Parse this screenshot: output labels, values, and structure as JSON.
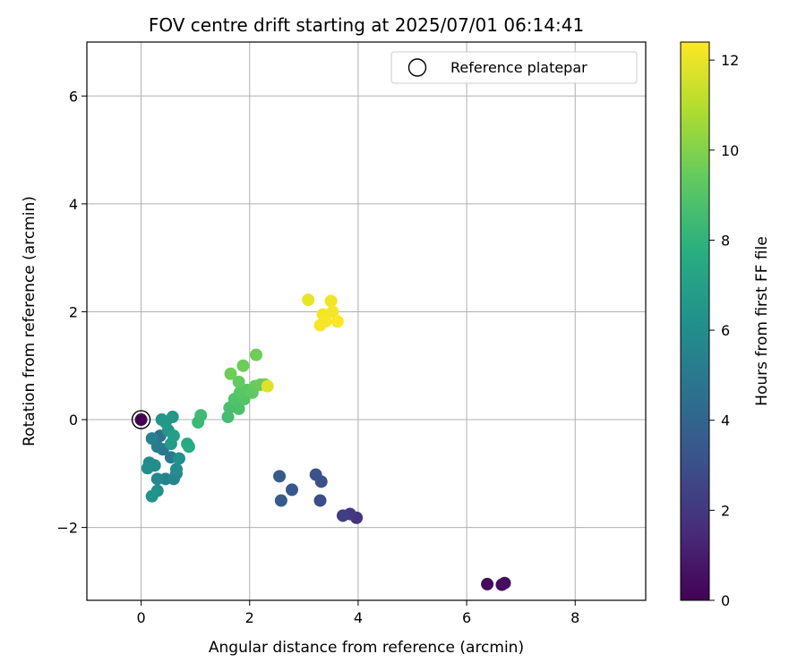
{
  "chart_data": {
    "type": "scatter",
    "title": "FOV centre drift starting at 2025/07/01 06:14:41",
    "xlabel": "Angular distance from reference (arcmin)",
    "ylabel": "Rotation from reference (arcmin)",
    "xlim": [
      -1.0,
      9.3
    ],
    "ylim": [
      -3.35,
      7.0
    ],
    "xticks": [
      0,
      2,
      4,
      6,
      8
    ],
    "yticks": [
      -2,
      0,
      2,
      4,
      6
    ],
    "grid": true,
    "legend": {
      "position": "top-right",
      "entries": [
        "Reference platepar"
      ]
    },
    "reference_point": {
      "x": 0,
      "y": 0,
      "label": "Reference platepar"
    },
    "colorbar": {
      "label": "Hours from first FF file",
      "min": 0,
      "max": 12.4,
      "ticks": [
        0,
        2,
        4,
        6,
        8,
        10,
        12
      ],
      "colormap": "viridis"
    },
    "points": [
      {
        "x": 0.0,
        "y": 0.0,
        "h": 0.0
      },
      {
        "x": 6.38,
        "y": -3.05,
        "h": 0.3
      },
      {
        "x": 6.65,
        "y": -3.06,
        "h": 0.4
      },
      {
        "x": 6.7,
        "y": -3.03,
        "h": 0.5
      },
      {
        "x": 3.97,
        "y": -1.82,
        "h": 1.8
      },
      {
        "x": 3.85,
        "y": -1.75,
        "h": 2.1
      },
      {
        "x": 3.72,
        "y": -1.78,
        "h": 2.3
      },
      {
        "x": 3.3,
        "y": -1.5,
        "h": 2.9
      },
      {
        "x": 3.32,
        "y": -1.15,
        "h": 3.0
      },
      {
        "x": 3.22,
        "y": -1.02,
        "h": 3.1
      },
      {
        "x": 2.78,
        "y": -1.3,
        "h": 3.4
      },
      {
        "x": 2.58,
        "y": -1.5,
        "h": 3.5
      },
      {
        "x": 2.55,
        "y": -1.05,
        "h": 3.6
      },
      {
        "x": 0.35,
        "y": -0.3,
        "h": 4.6
      },
      {
        "x": 0.4,
        "y": -0.55,
        "h": 4.8
      },
      {
        "x": 0.55,
        "y": -0.7,
        "h": 5.0
      },
      {
        "x": 0.3,
        "y": -0.5,
        "h": 5.2
      },
      {
        "x": 0.2,
        "y": -0.35,
        "h": 5.4
      },
      {
        "x": 0.45,
        "y": -1.1,
        "h": 5.5
      },
      {
        "x": 0.6,
        "y": -1.1,
        "h": 5.6
      },
      {
        "x": 0.65,
        "y": -1.0,
        "h": 5.7
      },
      {
        "x": 0.3,
        "y": -1.1,
        "h": 5.8
      },
      {
        "x": 0.15,
        "y": -0.8,
        "h": 5.9
      },
      {
        "x": 0.25,
        "y": -0.85,
        "h": 6.0
      },
      {
        "x": 0.12,
        "y": -0.9,
        "h": 6.1
      },
      {
        "x": 0.3,
        "y": -1.32,
        "h": 6.2
      },
      {
        "x": 0.2,
        "y": -1.42,
        "h": 6.3
      },
      {
        "x": 0.65,
        "y": -0.92,
        "h": 6.0
      },
      {
        "x": 0.7,
        "y": -0.72,
        "h": 6.2
      },
      {
        "x": 0.38,
        "y": 0.0,
        "h": 6.4
      },
      {
        "x": 0.45,
        "y": -0.05,
        "h": 6.5
      },
      {
        "x": 0.58,
        "y": 0.05,
        "h": 6.6
      },
      {
        "x": 0.5,
        "y": -0.2,
        "h": 6.6
      },
      {
        "x": 0.55,
        "y": -0.45,
        "h": 6.8
      },
      {
        "x": 0.6,
        "y": -0.3,
        "h": 6.9
      },
      {
        "x": 0.85,
        "y": -0.45,
        "h": 7.5
      },
      {
        "x": 0.88,
        "y": -0.5,
        "h": 7.6
      },
      {
        "x": 1.05,
        "y": -0.05,
        "h": 8.3
      },
      {
        "x": 1.1,
        "y": 0.08,
        "h": 8.4
      },
      {
        "x": 1.6,
        "y": 0.05,
        "h": 8.6
      },
      {
        "x": 1.63,
        "y": 0.22,
        "h": 8.7
      },
      {
        "x": 1.8,
        "y": 0.2,
        "h": 8.8
      },
      {
        "x": 1.72,
        "y": 0.38,
        "h": 8.9
      },
      {
        "x": 1.9,
        "y": 0.38,
        "h": 9.0
      },
      {
        "x": 1.82,
        "y": 0.5,
        "h": 9.1
      },
      {
        "x": 1.95,
        "y": 0.55,
        "h": 9.2
      },
      {
        "x": 2.05,
        "y": 0.5,
        "h": 9.3
      },
      {
        "x": 1.8,
        "y": 0.7,
        "h": 9.4
      },
      {
        "x": 2.1,
        "y": 0.62,
        "h": 9.4
      },
      {
        "x": 2.2,
        "y": 0.65,
        "h": 9.5
      },
      {
        "x": 2.28,
        "y": 0.65,
        "h": 9.5
      },
      {
        "x": 1.65,
        "y": 0.85,
        "h": 9.6
      },
      {
        "x": 1.88,
        "y": 1.0,
        "h": 9.6
      },
      {
        "x": 2.12,
        "y": 1.2,
        "h": 9.6
      },
      {
        "x": 2.33,
        "y": 0.62,
        "h": 11.8
      },
      {
        "x": 3.08,
        "y": 2.22,
        "h": 12.0
      },
      {
        "x": 3.5,
        "y": 2.2,
        "h": 12.1
      },
      {
        "x": 3.53,
        "y": 2.0,
        "h": 12.2
      },
      {
        "x": 3.35,
        "y": 1.95,
        "h": 12.2
      },
      {
        "x": 3.4,
        "y": 1.82,
        "h": 12.3
      },
      {
        "x": 3.3,
        "y": 1.75,
        "h": 12.3
      },
      {
        "x": 3.62,
        "y": 1.82,
        "h": 12.4
      }
    ]
  }
}
